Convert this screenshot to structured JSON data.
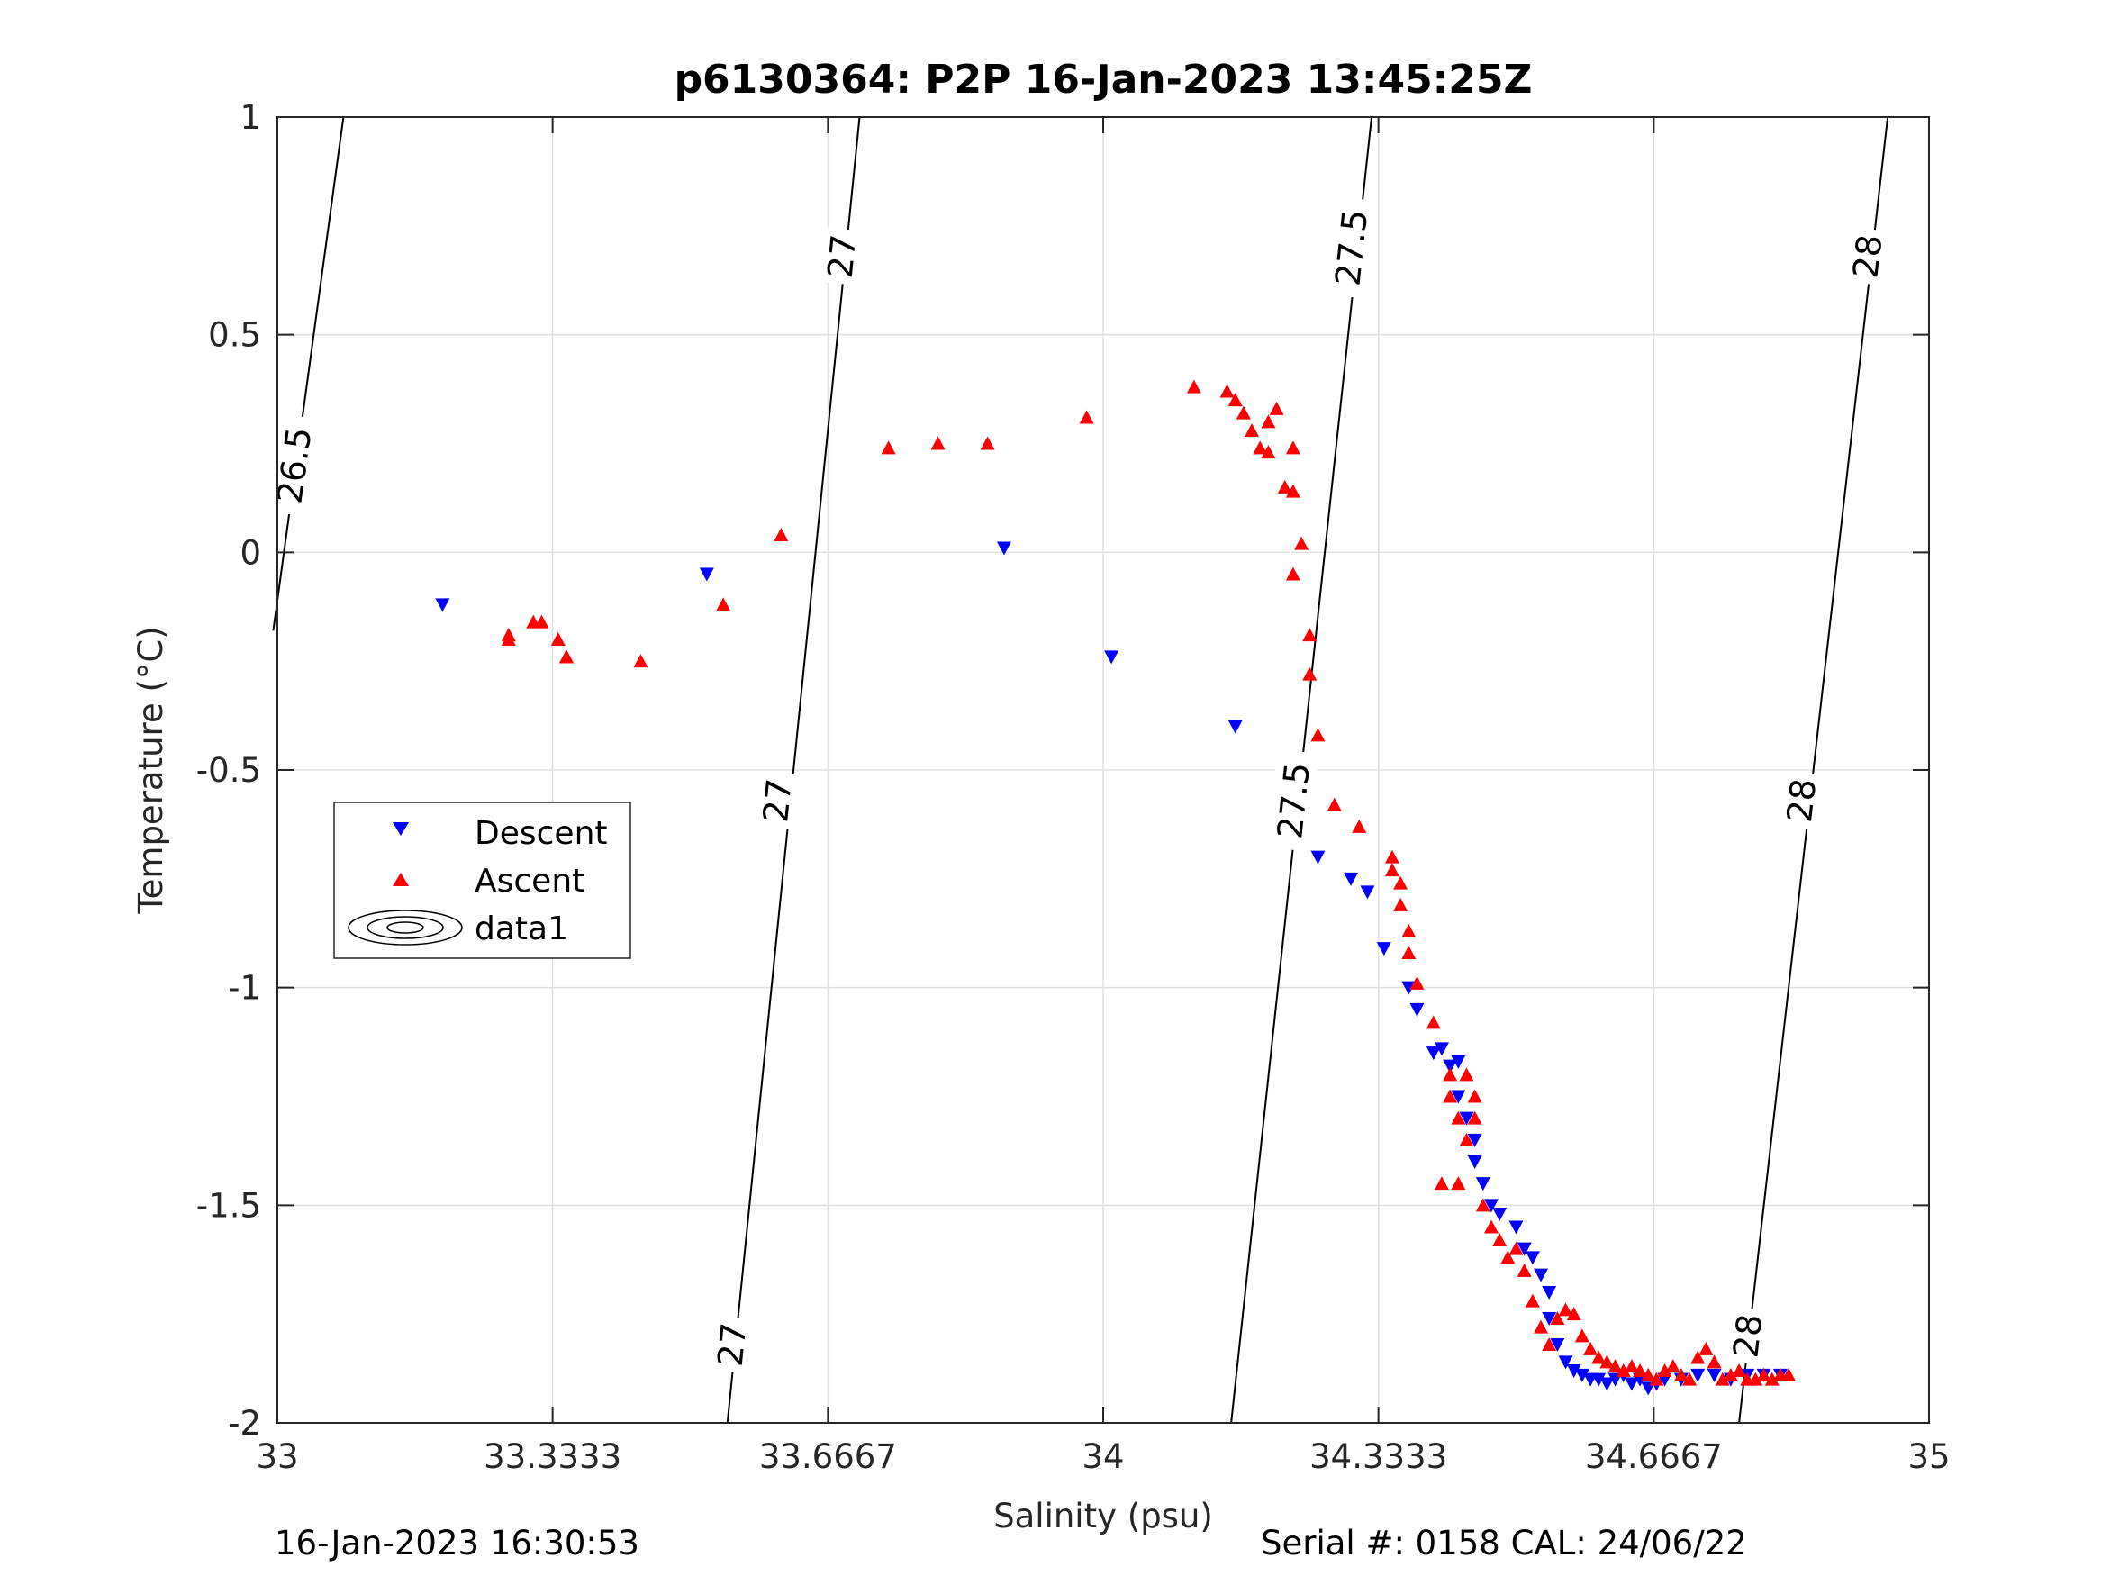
{
  "footer": {
    "left_text": "16-Jan-2023 16:30:53",
    "right_text": "Serial #: 0158  CAL: 24/06/22"
  },
  "chart_data": {
    "type": "scatter",
    "title": "p6130364: P2P 16-Jan-2023 13:45:25Z",
    "xlabel": "Salinity (psu)",
    "ylabel": "Temperature (°C)",
    "xlim": [
      33,
      35
    ],
    "ylim": [
      -2,
      1
    ],
    "xticks": [
      33,
      33.3333,
      33.6667,
      34,
      34.3333,
      34.6667,
      35
    ],
    "xtick_labels": [
      "33",
      "33.3333",
      "33.6667",
      "34",
      "34.3333",
      "34.6667",
      "35"
    ],
    "yticks": [
      -2,
      -1.5,
      -1,
      -0.5,
      0,
      0.5,
      1
    ],
    "ytick_labels": [
      "-2",
      "-1.5",
      "-1",
      "-0.5",
      "0",
      "0.5",
      "1"
    ],
    "grid": true,
    "legend_position": "middle-left",
    "legend": [
      "Descent",
      "Ascent",
      "data1"
    ],
    "colors": {
      "descent": "#0000ff",
      "ascent": "#ff0000",
      "contour": "#000000",
      "grid": "#e0e0e0"
    },
    "series": [
      {
        "name": "Descent",
        "marker": "triangle-down",
        "color": "#0000ff",
        "x": [
          33.2,
          33.52,
          33.88,
          34.01,
          34.16,
          34.26,
          34.3,
          34.32,
          34.34,
          34.37,
          34.38,
          34.4,
          34.41,
          34.42,
          34.43,
          34.43,
          34.44,
          34.45,
          34.45,
          34.46,
          34.47,
          34.48,
          34.5,
          34.51,
          34.52,
          34.53,
          34.54,
          34.54,
          34.55,
          34.56,
          34.57,
          34.58,
          34.59,
          34.6,
          34.61,
          34.62,
          34.63,
          34.64,
          34.65,
          34.66,
          34.67,
          34.68,
          34.7,
          34.72,
          34.74,
          34.76,
          34.78,
          34.8,
          34.82
        ],
        "y": [
          -0.12,
          -0.05,
          0.01,
          -0.24,
          -0.4,
          -0.7,
          -0.75,
          -0.78,
          -0.91,
          -1.0,
          -1.05,
          -1.15,
          -1.14,
          -1.18,
          -1.17,
          -1.25,
          -1.3,
          -1.35,
          -1.4,
          -1.45,
          -1.5,
          -1.52,
          -1.55,
          -1.6,
          -1.62,
          -1.66,
          -1.7,
          -1.76,
          -1.82,
          -1.86,
          -1.88,
          -1.89,
          -1.9,
          -1.9,
          -1.91,
          -1.9,
          -1.89,
          -1.91,
          -1.9,
          -1.92,
          -1.91,
          -1.9,
          -1.9,
          -1.89,
          -1.89,
          -1.9,
          -1.89,
          -1.89,
          -1.89
        ]
      },
      {
        "name": "Ascent",
        "marker": "triangle-up",
        "color": "#ff0000",
        "x": [
          33.28,
          33.28,
          33.31,
          33.32,
          33.34,
          33.35,
          33.35,
          33.44,
          33.54,
          33.61,
          33.74,
          33.8,
          33.86,
          33.98,
          34.11,
          34.15,
          34.16,
          34.17,
          34.18,
          34.19,
          34.2,
          34.2,
          34.21,
          34.22,
          34.23,
          34.23,
          34.23,
          34.24,
          34.25,
          34.25,
          34.26,
          34.28,
          34.31,
          34.35,
          34.35,
          34.36,
          34.36,
          34.37,
          34.37,
          34.38,
          34.4,
          34.41,
          34.42,
          34.42,
          34.43,
          34.43,
          34.44,
          34.44,
          34.45,
          34.45,
          34.46,
          34.47,
          34.48,
          34.49,
          34.5,
          34.51,
          34.52,
          34.53,
          34.54,
          34.55,
          34.56,
          34.57,
          34.58,
          34.59,
          34.6,
          34.61,
          34.62,
          34.63,
          34.64,
          34.65,
          34.66,
          34.67,
          34.68,
          34.69,
          34.7,
          34.71,
          34.72,
          34.73,
          34.74,
          34.75,
          34.76,
          34.77,
          34.78,
          34.79,
          34.8,
          34.81,
          34.82,
          34.83
        ],
        "y": [
          -0.2,
          -0.19,
          -0.16,
          -0.16,
          -0.2,
          -0.24,
          -0.24,
          -0.25,
          -0.12,
          0.04,
          0.24,
          0.25,
          0.25,
          0.31,
          0.38,
          0.37,
          0.35,
          0.32,
          0.28,
          0.24,
          0.23,
          0.3,
          0.33,
          0.15,
          0.14,
          0.24,
          -0.05,
          0.02,
          -0.19,
          -0.28,
          -0.42,
          -0.58,
          -0.63,
          -0.7,
          -0.73,
          -0.76,
          -0.81,
          -0.87,
          -0.92,
          -0.99,
          -1.08,
          -1.45,
          -1.2,
          -1.25,
          -1.3,
          -1.45,
          -1.35,
          -1.2,
          -1.25,
          -1.3,
          -1.5,
          -1.55,
          -1.58,
          -1.62,
          -1.6,
          -1.65,
          -1.72,
          -1.78,
          -1.82,
          -1.76,
          -1.74,
          -1.75,
          -1.8,
          -1.83,
          -1.85,
          -1.86,
          -1.87,
          -1.88,
          -1.87,
          -1.88,
          -1.89,
          -1.9,
          -1.88,
          -1.87,
          -1.89,
          -1.9,
          -1.85,
          -1.83,
          -1.86,
          -1.9,
          -1.89,
          -1.88,
          -1.9,
          -1.9,
          -1.89,
          -1.9,
          -1.89,
          -1.89
        ]
      }
    ],
    "contours": [
      {
        "level": "26.5",
        "x": [
          32.995,
          33.08
        ],
        "y": [
          -0.18,
          1.0
        ]
      },
      {
        "level": "27",
        "x": [
          33.545,
          33.705
        ],
        "y": [
          -2.0,
          1.0
        ]
      },
      {
        "level": "28",
        "x": [
          34.77,
          34.95
        ],
        "y": [
          -2.0,
          1.0
        ]
      },
      {
        "level": "27.5",
        "x": [
          34.155,
          34.325
        ],
        "y": [
          -2.0,
          1.0
        ]
      }
    ],
    "contour_labels": [
      {
        "text": "26.5",
        "x": 33.02,
        "y": 0.2
      },
      {
        "text": "27",
        "x": 33.683,
        "y": 0.68
      },
      {
        "text": "27",
        "x": 33.605,
        "y": -0.57
      },
      {
        "text": "27",
        "x": 33.55,
        "y": -1.82
      },
      {
        "text": "27.5",
        "x": 34.3,
        "y": 0.7
      },
      {
        "text": "27.5",
        "x": 34.23,
        "y": -0.57
      },
      {
        "text": "28",
        "x": 34.925,
        "y": 0.68
      },
      {
        "text": "28",
        "x": 34.845,
        "y": -0.57
      },
      {
        "text": "28",
        "x": 34.78,
        "y": -1.8
      }
    ]
  }
}
